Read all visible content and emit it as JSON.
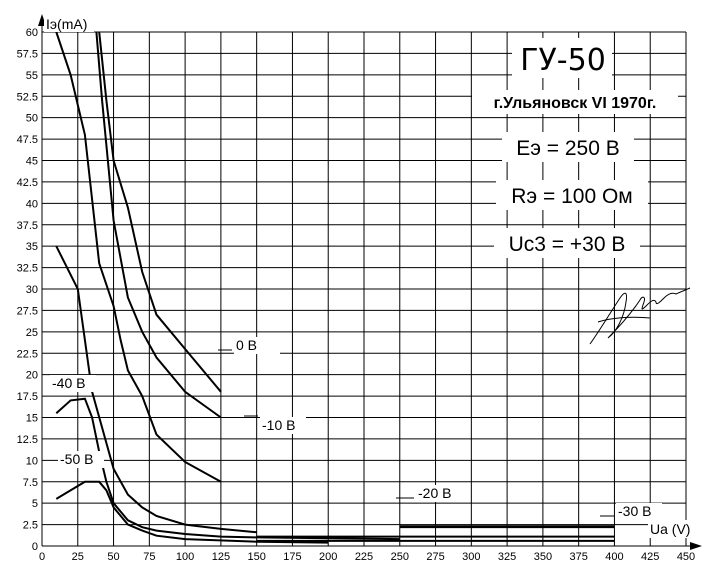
{
  "chart_data": {
    "type": "line",
    "title": "ГУ-50",
    "subtitle": "г.Ульяновск VI 1970г.",
    "annotations": [
      "Eэ = 250 В",
      "Rэ = 100 Ом",
      "Uc3 = +30 В"
    ],
    "xlabel": "Ua (V)",
    "ylabel": "Iэ(mA)",
    "xlim": [
      0,
      450
    ],
    "ylim": [
      0,
      60
    ],
    "x_ticks": [
      "0",
      "25",
      "50",
      "75",
      "100",
      "125",
      "150",
      "175",
      "200",
      "225",
      "250",
      "275",
      "300",
      "325",
      "350",
      "375",
      "400",
      "425",
      "450"
    ],
    "y_ticks": [
      "0",
      "2.5",
      "5",
      "7.5",
      "10",
      "12.5",
      "15",
      "17.5",
      "20",
      "22.5",
      "25",
      "27.5",
      "30",
      "32.5",
      "35",
      "37.5",
      "40",
      "42.5",
      "45",
      "47.5",
      "50",
      "52.5",
      "55",
      "57.5",
      "60"
    ],
    "grid": true,
    "series": [
      {
        "name": "0 В",
        "x": [
          38,
          42,
          50,
          60,
          70,
          80,
          100,
          125
        ],
        "y": [
          60,
          52,
          38,
          29,
          25,
          22,
          18,
          15
        ]
      },
      {
        "name": "0 В",
        "x": [
          40,
          45,
          50,
          60,
          70,
          80,
          100,
          125
        ],
        "y": [
          60,
          52,
          45,
          39.5,
          32,
          27,
          23,
          18
        ]
      },
      {
        "name": "0 В",
        "x": [
          10,
          20,
          30,
          40,
          50,
          55,
          60,
          70,
          80,
          100,
          125
        ],
        "y": [
          60,
          55,
          48,
          33,
          28,
          24,
          20.5,
          17.5,
          13,
          9.8,
          7.5
        ]
      },
      {
        "name": "0 В",
        "x": [
          10,
          25,
          35,
          50,
          60,
          70,
          80,
          100,
          125,
          150
        ],
        "y": [
          35,
          30,
          18,
          9,
          6,
          4.5,
          3.5,
          2.5,
          2,
          1.6
        ]
      },
      {
        "name": "0 В",
        "x": [
          10,
          20,
          30,
          35,
          40,
          45,
          50,
          60,
          70,
          80,
          100,
          125,
          150,
          200,
          250
        ],
        "y": [
          15.5,
          17,
          17.2,
          15,
          11,
          7.5,
          5,
          3,
          2.2,
          1.8,
          1.4,
          1.1,
          1,
          0.9,
          0.8
        ]
      },
      {
        "name": "0 В",
        "x": [
          10,
          30,
          40,
          45,
          50,
          60,
          70,
          80,
          100,
          150,
          200
        ],
        "y": [
          5.5,
          7.5,
          7.5,
          6.5,
          4.5,
          2.5,
          1.8,
          1.2,
          0.8,
          0.5,
          0.4
        ]
      }
    ]
  },
  "display": {
    "ylabel_text": "Iэ(mA)",
    "xlabel_text": "Ua (V)",
    "series_labels": [
      "0 В",
      "-10 В",
      "-20 В",
      "-30 В",
      "-40 В",
      "-50 В"
    ]
  }
}
